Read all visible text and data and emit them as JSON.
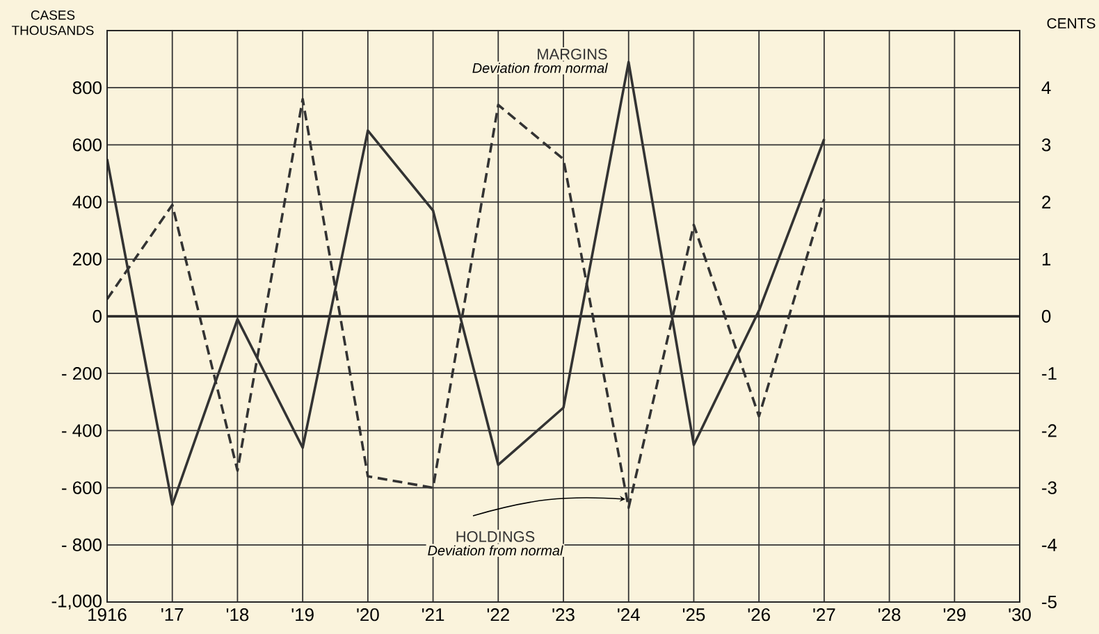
{
  "chart_data": {
    "type": "line",
    "ylabel": "CASES THOUSANDS",
    "y2label": "CENTS",
    "x": [
      1916,
      1917,
      1918,
      1919,
      1920,
      1921,
      1922,
      1923,
      1924,
      1925,
      1926,
      1927
    ],
    "series": [
      {
        "name": "MARGINS",
        "color": "#333333",
        "axis": "y2",
        "line_style": "solid",
        "values": [
          2.75,
          -3.3,
          -0.05,
          -2.3,
          3.25,
          1.85,
          -2.6,
          -1.6,
          4.45,
          -2.25,
          0.1,
          3.1
        ]
      },
      {
        "name": "HOLDINGS",
        "color": "#333333",
        "line_style": "dashed",
        "values": [
          60,
          390,
          -540,
          760,
          -560,
          -600,
          740,
          550,
          -670,
          320,
          -350,
          410
        ]
      }
    ],
    "annotations": [
      "Deviation from normal",
      "Deviation from normal"
    ],
    "xlim": [
      1916,
      1930
    ],
    "xticks": [
      1916,
      {
        "value": 1917,
        "label": "'17"
      },
      {
        "value": 1918,
        "label": "'18"
      },
      {
        "value": 1919,
        "label": "'19"
      },
      {
        "value": 1920,
        "label": "'20"
      },
      {
        "value": 1921,
        "label": "'21"
      },
      {
        "value": 1922,
        "label": "'22"
      },
      {
        "value": 1923,
        "label": "'23"
      },
      {
        "value": 1924,
        "label": "'24"
      },
      {
        "value": 1925,
        "label": "'25"
      },
      {
        "value": 1926,
        "label": "'26"
      },
      {
        "value": 1927,
        "label": "'27"
      },
      {
        "value": 1928,
        "label": "'28"
      },
      {
        "value": 1929,
        "label": "'29"
      },
      {
        "value": 1930,
        "label": "'30"
      }
    ],
    "ylim": [
      -1000,
      1000
    ],
    "yticks": [
      {
        "value": -1000,
        "label": "-1,000"
      },
      {
        "value": -800,
        "label": "- 800"
      },
      {
        "value": -600,
        "label": "- 600"
      },
      {
        "value": -400,
        "label": "- 400"
      },
      {
        "value": -200,
        "label": "- 200"
      },
      0,
      200,
      400,
      600,
      800
    ],
    "y2lim": [
      -5,
      5
    ],
    "y2ticks": [
      -5,
      -4,
      -3,
      -2,
      -1,
      0,
      1,
      2,
      3,
      4
    ],
    "grid": true
  }
}
